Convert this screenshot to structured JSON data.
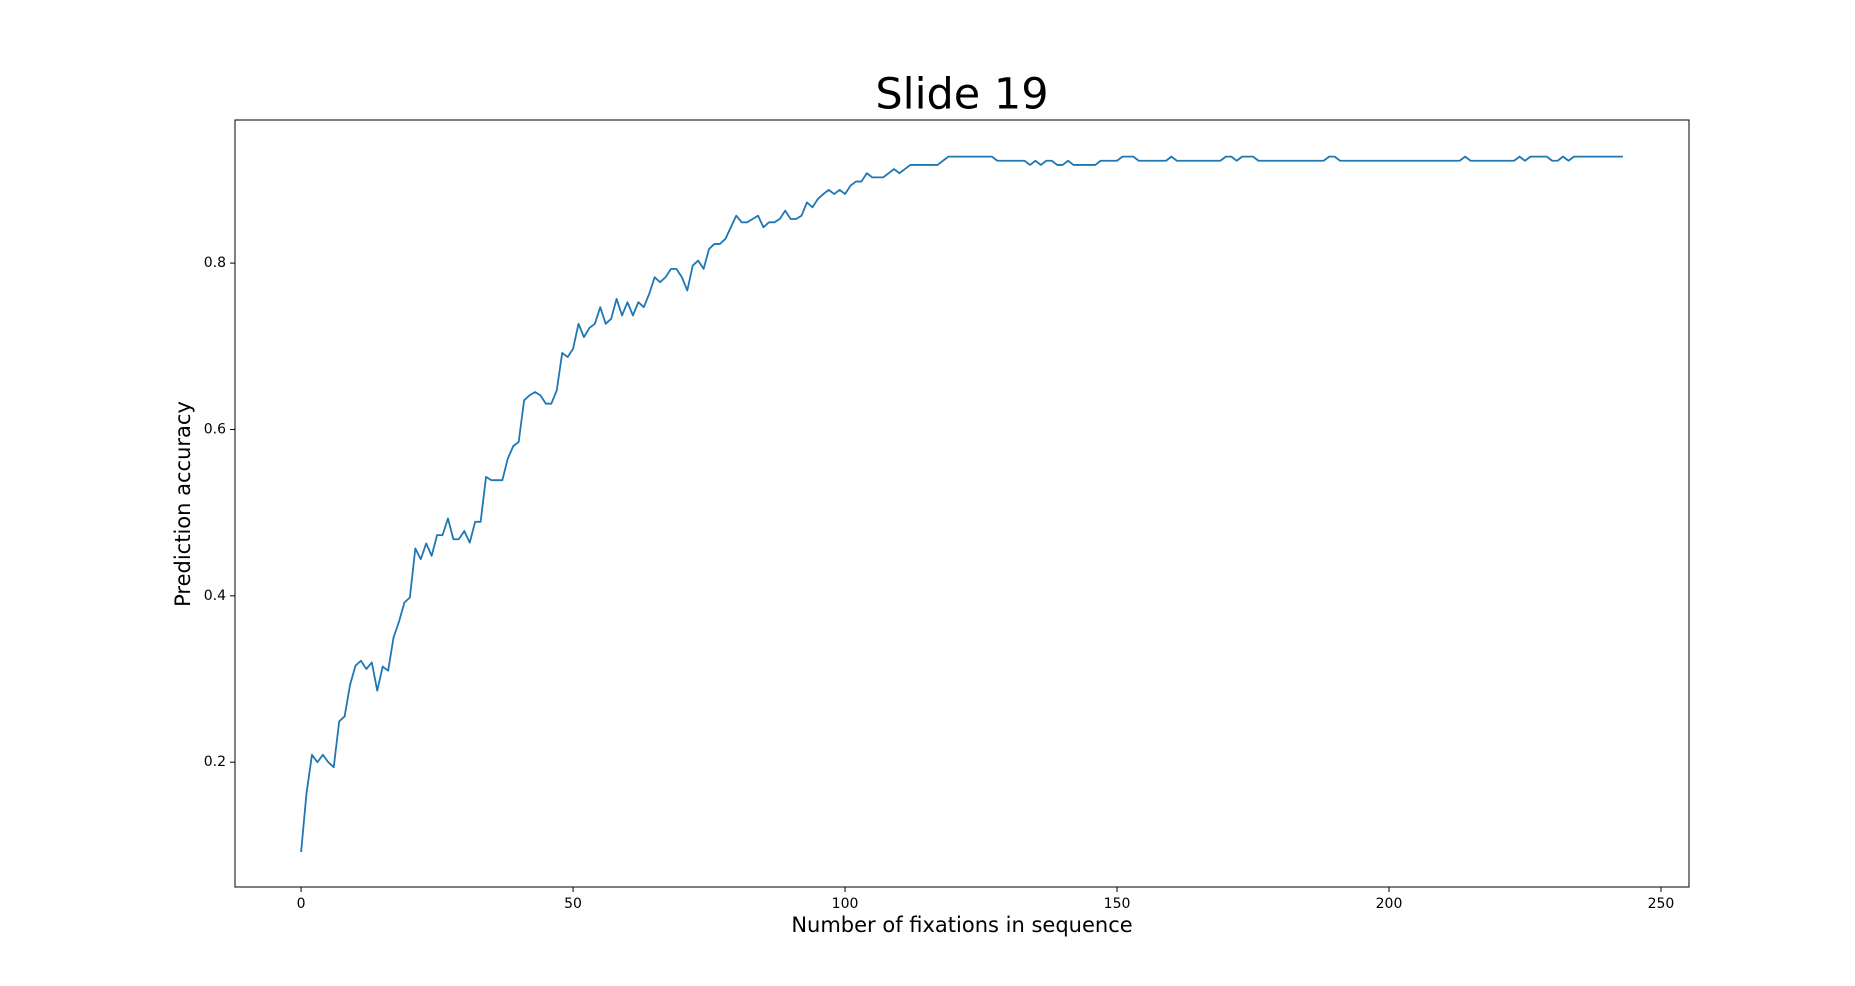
{
  "chart_data": {
    "type": "line",
    "title": "Slide 19",
    "x_label": "Number of fixations in sequence",
    "y_label": "Prediction accuracy",
    "xlim": [
      -12.15,
      255.15
    ],
    "ylim": [
      0.05,
      0.972
    ],
    "xticks": [
      0,
      50,
      100,
      150,
      200,
      250
    ],
    "yticks": [
      0.2,
      0.4,
      0.6,
      0.8
    ],
    "grid": false,
    "color": "#1f77b4",
    "x": [
      0,
      1,
      2,
      3,
      4,
      5,
      6,
      7,
      8,
      9,
      10,
      11,
      12,
      13,
      14,
      15,
      16,
      17,
      18,
      19,
      20,
      21,
      22,
      23,
      24,
      25,
      26,
      27,
      28,
      29,
      30,
      31,
      32,
      33,
      34,
      35,
      36,
      37,
      38,
      39,
      40,
      41,
      42,
      43,
      44,
      45,
      46,
      47,
      48,
      49,
      50,
      51,
      52,
      53,
      54,
      55,
      56,
      57,
      58,
      59,
      60,
      61,
      62,
      63,
      64,
      65,
      66,
      67,
      68,
      69,
      70,
      71,
      72,
      73,
      74,
      75,
      76,
      77,
      78,
      79,
      80,
      81,
      82,
      83,
      84,
      85,
      86,
      87,
      88,
      89,
      90,
      91,
      92,
      93,
      94,
      95,
      96,
      97,
      98,
      99,
      100,
      101,
      102,
      103,
      104,
      105,
      106,
      107,
      108,
      109,
      110,
      111,
      112,
      113,
      114,
      115,
      116,
      117,
      118,
      119,
      120,
      121,
      122,
      123,
      124,
      125,
      126,
      127,
      128,
      129,
      130,
      131,
      132,
      133,
      134,
      135,
      136,
      137,
      138,
      139,
      140,
      141,
      142,
      143,
      144,
      145,
      146,
      147,
      148,
      149,
      150,
      151,
      152,
      153,
      154,
      155,
      156,
      157,
      158,
      159,
      160,
      161,
      162,
      163,
      164,
      165,
      166,
      167,
      168,
      169,
      170,
      171,
      172,
      173,
      174,
      175,
      176,
      177,
      178,
      179,
      180,
      181,
      182,
      183,
      184,
      185,
      186,
      187,
      188,
      189,
      190,
      191,
      192,
      193,
      194,
      195,
      196,
      197,
      198,
      199,
      200,
      201,
      202,
      203,
      204,
      205,
      206,
      207,
      208,
      209,
      210,
      211,
      212,
      213,
      214,
      215,
      216,
      217,
      218,
      219,
      220,
      221,
      222,
      223,
      224,
      225,
      226,
      227,
      228,
      229,
      230,
      231,
      232,
      233,
      234,
      235,
      236,
      237,
      238,
      239,
      240,
      241,
      242,
      243
    ],
    "values": [
      0.092,
      0.163,
      0.209,
      0.2,
      0.209,
      0.2,
      0.194,
      0.249,
      0.255,
      0.293,
      0.316,
      0.322,
      0.312,
      0.32,
      0.286,
      0.315,
      0.31,
      0.35,
      0.369,
      0.392,
      0.398,
      0.457,
      0.444,
      0.463,
      0.448,
      0.473,
      0.473,
      0.493,
      0.468,
      0.468,
      0.478,
      0.464,
      0.489,
      0.489,
      0.543,
      0.539,
      0.539,
      0.539,
      0.565,
      0.58,
      0.585,
      0.635,
      0.641,
      0.645,
      0.641,
      0.631,
      0.631,
      0.647,
      0.692,
      0.687,
      0.697,
      0.727,
      0.711,
      0.722,
      0.727,
      0.747,
      0.727,
      0.733,
      0.757,
      0.737,
      0.753,
      0.737,
      0.753,
      0.747,
      0.763,
      0.783,
      0.777,
      0.783,
      0.793,
      0.793,
      0.783,
      0.767,
      0.797,
      0.803,
      0.793,
      0.817,
      0.823,
      0.823,
      0.829,
      0.843,
      0.857,
      0.849,
      0.849,
      0.853,
      0.857,
      0.843,
      0.849,
      0.849,
      0.853,
      0.863,
      0.853,
      0.853,
      0.857,
      0.873,
      0.867,
      0.877,
      0.883,
      0.888,
      0.883,
      0.888,
      0.883,
      0.893,
      0.898,
      0.898,
      0.908,
      0.903,
      0.903,
      0.903,
      0.908,
      0.913,
      0.908,
      0.913,
      0.918,
      0.918,
      0.918,
      0.918,
      0.918,
      0.918,
      0.923,
      0.928,
      0.928,
      0.928,
      0.928,
      0.928,
      0.928,
      0.928,
      0.928,
      0.928,
      0.923,
      0.923,
      0.923,
      0.923,
      0.923,
      0.923,
      0.918,
      0.923,
      0.918,
      0.923,
      0.923,
      0.918,
      0.918,
      0.923,
      0.918,
      0.918,
      0.918,
      0.918,
      0.918,
      0.923,
      0.923,
      0.923,
      0.923,
      0.928,
      0.928,
      0.928,
      0.923,
      0.923,
      0.923,
      0.923,
      0.923,
      0.923,
      0.928,
      0.923,
      0.923,
      0.923,
      0.923,
      0.923,
      0.923,
      0.923,
      0.923,
      0.923,
      0.928,
      0.928,
      0.923,
      0.928,
      0.928,
      0.928,
      0.923,
      0.923,
      0.923,
      0.923,
      0.923,
      0.923,
      0.923,
      0.923,
      0.923,
      0.923,
      0.923,
      0.923,
      0.923,
      0.928,
      0.928,
      0.923,
      0.923,
      0.923,
      0.923,
      0.923,
      0.923,
      0.923,
      0.923,
      0.923,
      0.923,
      0.923,
      0.923,
      0.923,
      0.923,
      0.923,
      0.923,
      0.923,
      0.923,
      0.923,
      0.923,
      0.923,
      0.923,
      0.923,
      0.928,
      0.923,
      0.923,
      0.923,
      0.923,
      0.923,
      0.923,
      0.923,
      0.923,
      0.923,
      0.928,
      0.923,
      0.928,
      0.928,
      0.928,
      0.928,
      0.923,
      0.923,
      0.928,
      0.923,
      0.928,
      0.928,
      0.928,
      0.928,
      0.928,
      0.928,
      0.928,
      0.928,
      0.928,
      0.928
    ]
  }
}
